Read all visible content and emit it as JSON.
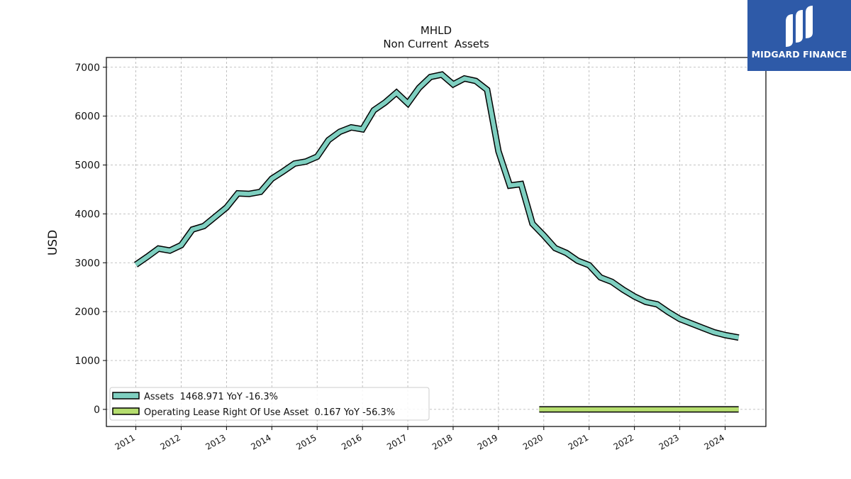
{
  "logo": {
    "brand_text": "MIDGARD FINANCE",
    "icon": "midgard-logo-icon",
    "background": "#2e5aa8"
  },
  "chart_data": {
    "type": "line",
    "title": "MHLD",
    "subtitle": "Non Current  Assets",
    "ylabel": "USD",
    "xlabel": "",
    "ylim": [
      -350,
      7200
    ],
    "xlim": [
      2010.35,
      2024.9
    ],
    "yticks": [
      0,
      1000,
      2000,
      3000,
      4000,
      5000,
      6000,
      7000
    ],
    "xticks": [
      "2011",
      "2012",
      "2013",
      "2014",
      "2015",
      "2016",
      "2017",
      "2018",
      "2019",
      "2020",
      "2021",
      "2022",
      "2023",
      "2024"
    ],
    "grid": true,
    "legend_position": "lower-left",
    "series": [
      {
        "name": "Assets",
        "legend_label": "Assets  1468.971 YoY -16.3%",
        "color": "#7ecfc0",
        "x": [
          2011.0,
          2011.25,
          2011.5,
          2011.75,
          2012.0,
          2012.25,
          2012.5,
          2012.75,
          2013.0,
          2013.25,
          2013.5,
          2013.75,
          2014.0,
          2014.25,
          2014.5,
          2014.75,
          2015.0,
          2015.25,
          2015.5,
          2015.75,
          2016.0,
          2016.25,
          2016.5,
          2016.75,
          2017.0,
          2017.25,
          2017.5,
          2017.75,
          2018.0,
          2018.25,
          2018.5,
          2018.75,
          2019.0,
          2019.25,
          2019.5,
          2019.75,
          2020.0,
          2020.25,
          2020.5,
          2020.75,
          2021.0,
          2021.25,
          2021.5,
          2021.75,
          2022.0,
          2022.25,
          2022.5,
          2022.75,
          2023.0,
          2023.25,
          2023.5,
          2023.75,
          2024.0,
          2024.3
        ],
        "values": [
          2960,
          3120,
          3290,
          3250,
          3360,
          3680,
          3750,
          3940,
          4130,
          4420,
          4410,
          4450,
          4720,
          4870,
          5030,
          5070,
          5170,
          5510,
          5680,
          5770,
          5730,
          6120,
          6280,
          6480,
          6260,
          6580,
          6800,
          6850,
          6650,
          6770,
          6720,
          6540,
          5280,
          4580,
          4610,
          3800,
          3560,
          3300,
          3200,
          3040,
          2950,
          2700,
          2610,
          2450,
          2310,
          2200,
          2150,
          1990,
          1850,
          1760,
          1670,
          1580,
          1520,
          1469
        ]
      },
      {
        "name": "Operating Lease Right Of Use Asset",
        "legend_label": "Operating Lease Right Of Use Asset  0.167 YoY -56.3%",
        "color": "#b5dd6e",
        "x": [
          2019.9,
          2024.3
        ],
        "values": [
          0.4,
          0.167
        ]
      }
    ]
  }
}
